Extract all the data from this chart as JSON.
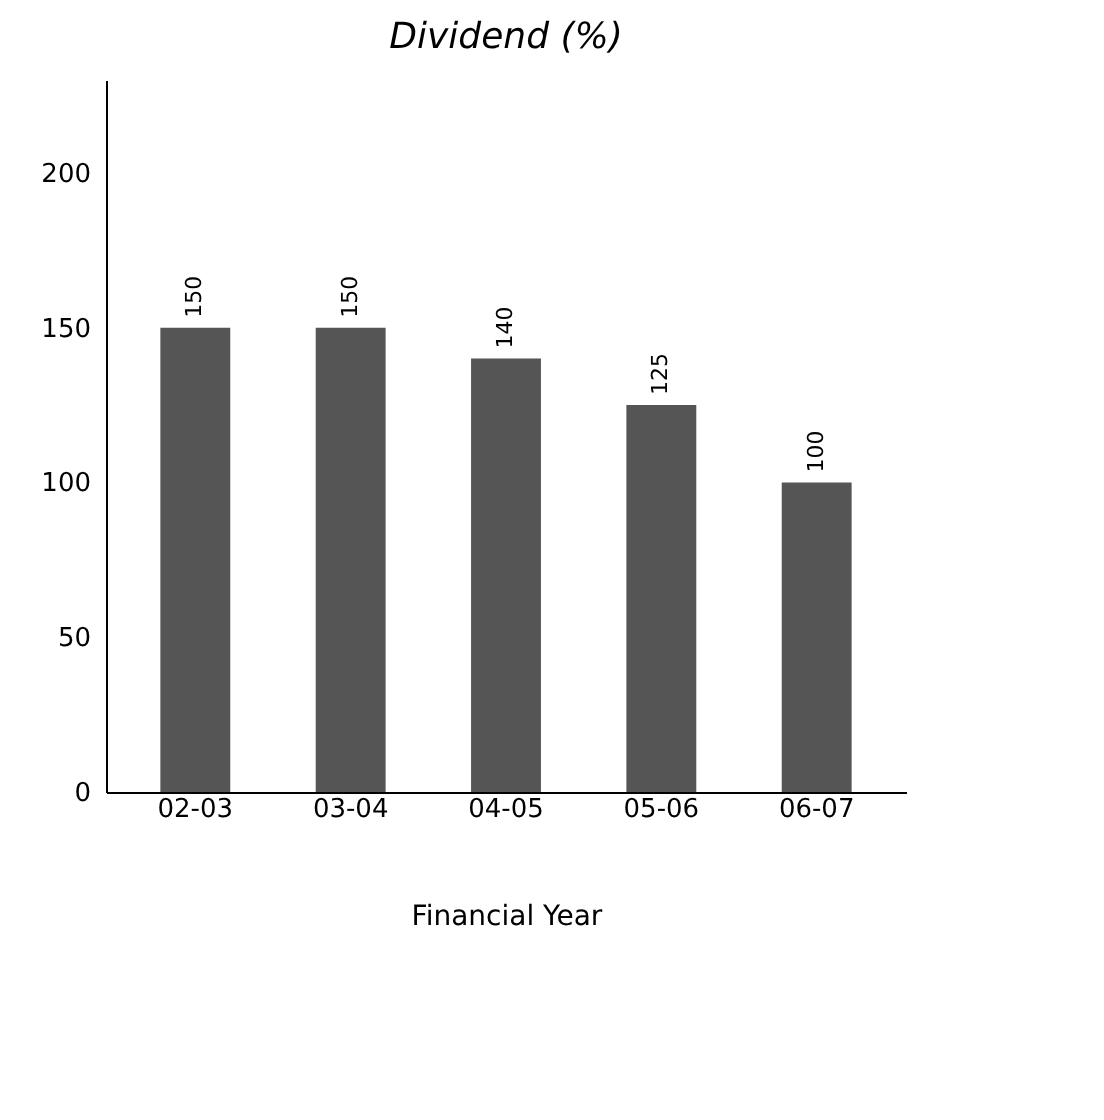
{
  "chart_data": {
    "type": "bar",
    "title": "Dividend (%)",
    "xlabel": "Financial Year",
    "categories": [
      "02-03",
      "03-04",
      "04-05",
      "05-06",
      "06-07"
    ],
    "values": [
      150,
      150,
      140,
      125,
      100
    ],
    "color": "#555555",
    "ylim": [
      0,
      230
    ],
    "yticks": [
      0,
      50,
      100,
      150,
      200
    ],
    "grid": false,
    "data_labels": true
  }
}
